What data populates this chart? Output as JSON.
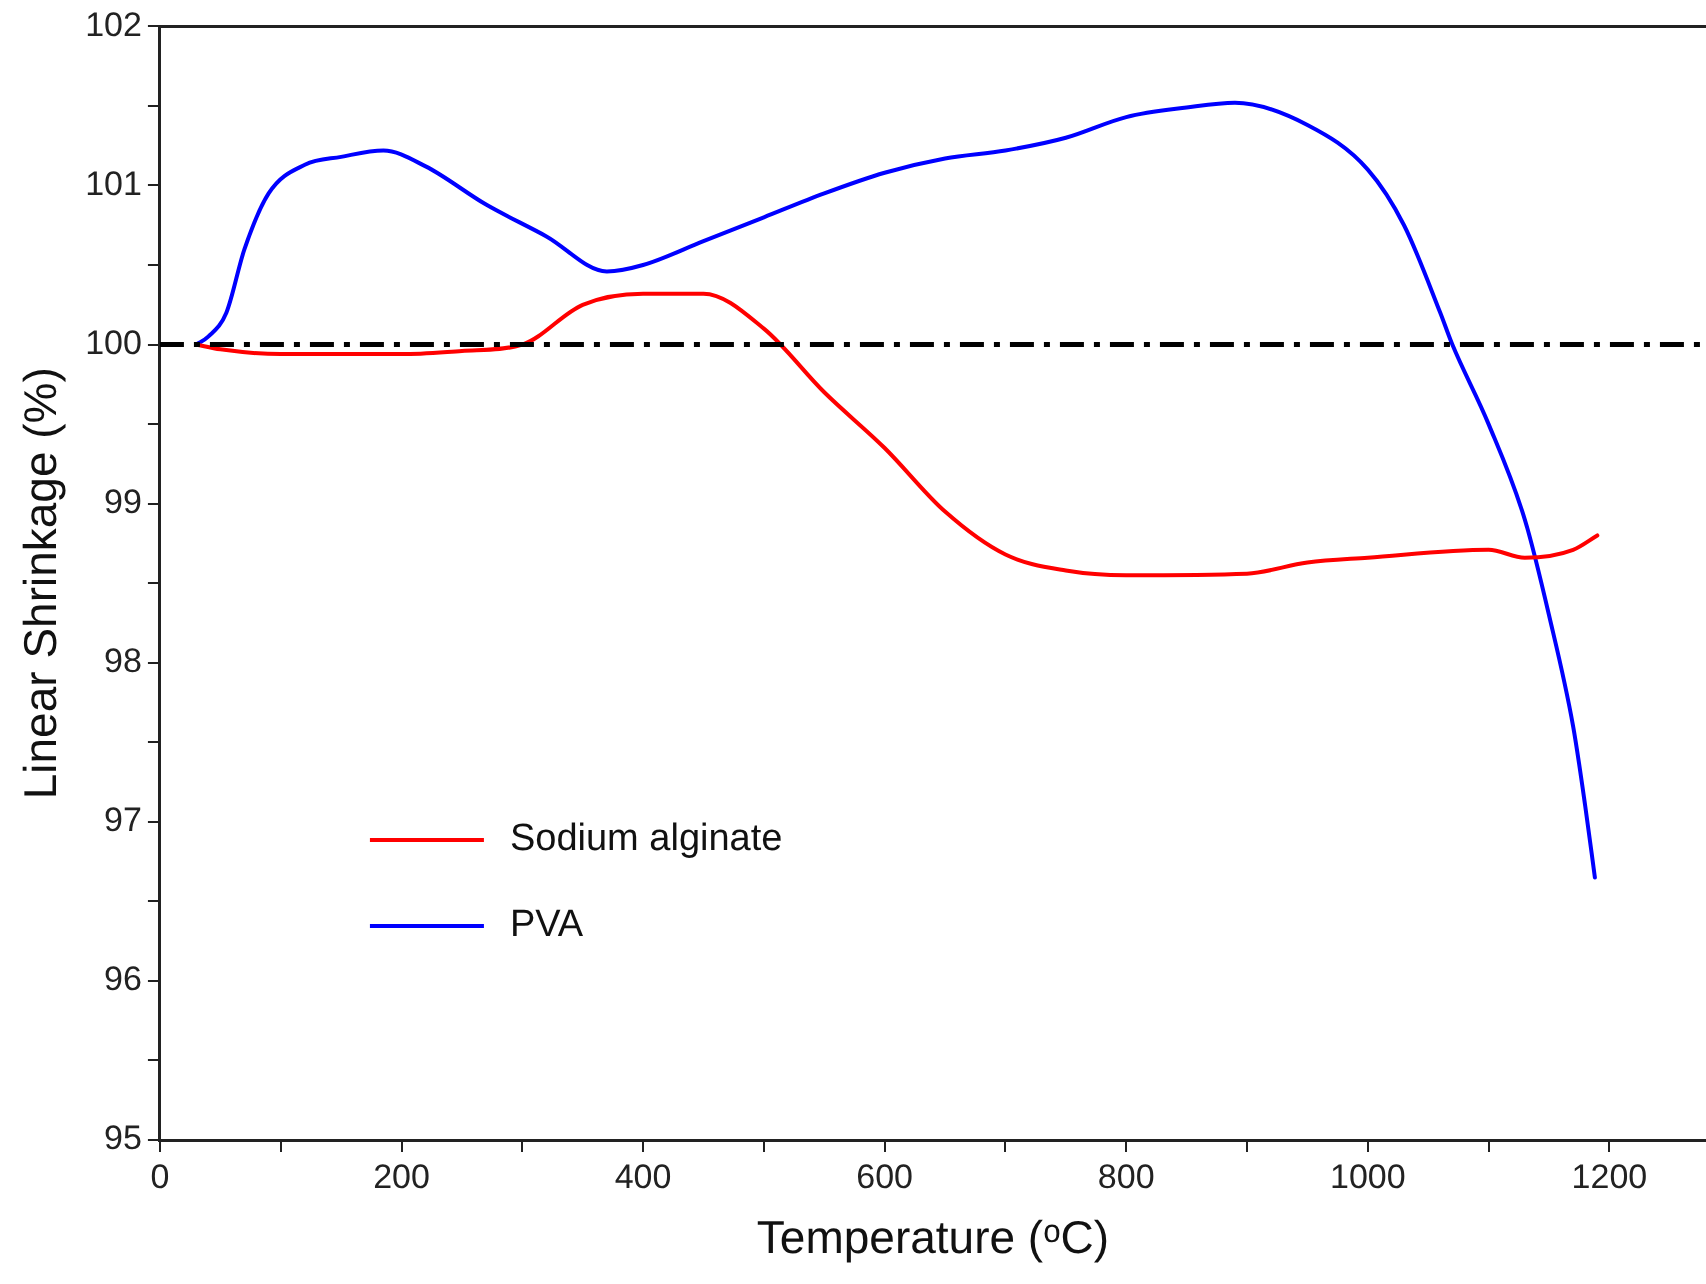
{
  "chart_data": {
    "type": "line",
    "xlabel": "Temperature (ᵒC)",
    "ylabel": "Linear Shrinkage (%)",
    "xlim": [
      0,
      1280
    ],
    "ylim": [
      95,
      102
    ],
    "xticks": [
      0,
      {
        "value": 100,
        "label": null
      },
      200,
      {
        "value": 300,
        "label": null
      },
      400,
      {
        "value": 500,
        "label": null
      },
      600,
      {
        "value": 700,
        "label": null
      },
      800,
      {
        "value": 900,
        "label": null
      },
      1000,
      {
        "value": 1100,
        "label": null
      },
      1200
    ],
    "yticks": [
      95,
      {
        "value": 95.5,
        "label": null
      },
      96,
      {
        "value": 96.5,
        "label": null
      },
      97,
      {
        "value": 97.5,
        "label": null
      },
      98,
      {
        "value": 98.5,
        "label": null
      },
      99,
      {
        "value": 99.5,
        "label": null
      },
      100,
      {
        "value": 100.5,
        "label": null
      },
      101,
      {
        "value": 101.5,
        "label": null
      },
      102
    ],
    "grid": false,
    "legend": "bottom left",
    "marker": "none",
    "line_style": "solid",
    "ref_lines": [
      {
        "axis": "y",
        "value": 100,
        "color": "#000000",
        "line_style": "dashdot"
      }
    ],
    "series": [
      {
        "name": "Sodium alginate",
        "color": "#ff0000",
        "x": [
          30,
          50,
          100,
          200,
          250,
          300,
          350,
          400,
          450,
          500,
          550,
          600,
          650,
          700,
          750,
          800,
          900,
          950,
          1000,
          1100,
          1130,
          1170,
          1190
        ],
        "values": [
          100.0,
          99.97,
          99.94,
          99.94,
          99.96,
          100.0,
          100.25,
          100.32,
          100.32,
          100.1,
          99.7,
          99.35,
          98.95,
          98.68,
          98.58,
          98.55,
          98.56,
          98.63,
          98.66,
          98.71,
          98.66,
          98.71,
          98.8
        ]
      },
      {
        "name": "PVA",
        "color": "#0000ff",
        "x": [
          30,
          40,
          55,
          70,
          90,
          120,
          150,
          185,
          220,
          270,
          320,
          370,
          400,
          450,
          500,
          550,
          600,
          650,
          700,
          750,
          800,
          850,
          890,
          950,
          1000,
          1030,
          1060,
          1070,
          1100,
          1130,
          1150,
          1170,
          1180,
          1188
        ],
        "values": [
          100.0,
          100.05,
          100.2,
          100.6,
          100.95,
          101.13,
          101.18,
          101.22,
          101.12,
          100.88,
          100.68,
          100.46,
          100.5,
          100.65,
          100.8,
          100.95,
          101.08,
          101.17,
          101.22,
          101.3,
          101.43,
          101.49,
          101.52,
          101.38,
          101.1,
          100.75,
          100.2,
          100.0,
          99.5,
          98.9,
          98.3,
          97.6,
          97.1,
          96.65
        ]
      }
    ]
  }
}
